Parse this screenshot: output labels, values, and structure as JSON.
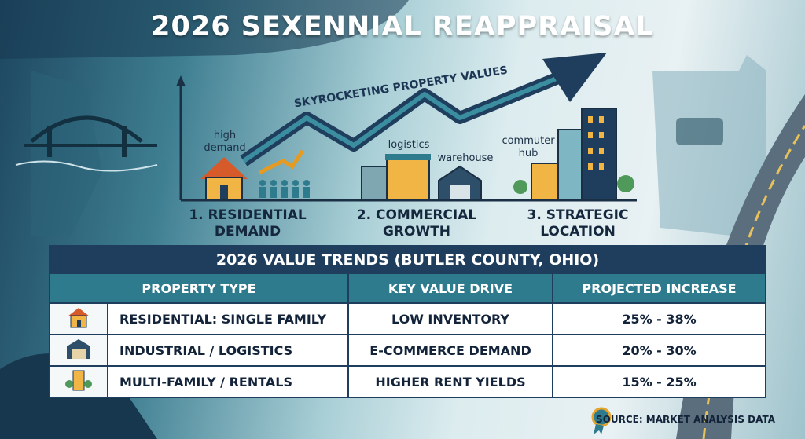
{
  "header": {
    "title": "2026 SEXENNIAL REAPPRAISAL"
  },
  "illustration": {
    "arrow_label": "SKYROCKETING PROPERTY VALUES",
    "tags": [
      "high demand",
      "logistics",
      "warehouse",
      "commuter hub"
    ],
    "pillars": [
      "1. RESIDENTIAL DEMAND",
      "2. COMMERCIAL GROWTH",
      "3. STRATEGIC LOCATION"
    ]
  },
  "table": {
    "title": "2026 VALUE TRENDS (BUTLER COUNTY, OHIO)",
    "columns": [
      "PROPERTY TYPE",
      "KEY VALUE DRIVE",
      "PROJECTED INCREASE"
    ],
    "rows": [
      [
        "RESIDENTIAL: SINGLE FAMILY",
        "LOW INVENTORY",
        "25% - 38%"
      ],
      [
        "INDUSTRIAL / LOGISTICS",
        "E-COMMERCE DEMAND",
        "20% - 30%"
      ],
      [
        "MULTI-FAMILY / RENTALS",
        "HIGHER RENT YIELDS",
        "15% - 25%"
      ]
    ]
  },
  "source": "SOURCE: MARKET ANALYSIS DATA"
}
